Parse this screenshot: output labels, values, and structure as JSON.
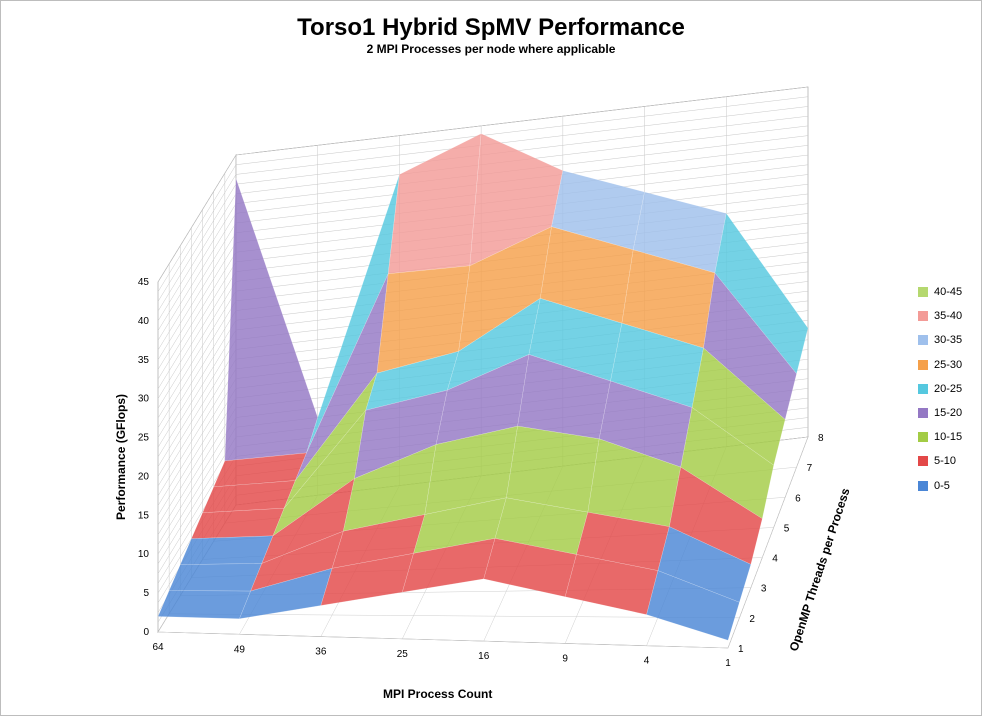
{
  "chart_data": {
    "type": "surface",
    "title": "Torso1 Hybrid SpMV Performance",
    "subtitle": "2 MPI Processes per node where applicable",
    "xlabel": "MPI Process Count",
    "ylabel": "OpenMP Threads per Process",
    "zlabel": "Performance (GFlops)",
    "x_categories": [
      "64",
      "49",
      "36",
      "25",
      "16",
      "9",
      "4",
      "1"
    ],
    "y_categories": [
      "1",
      "2",
      "3",
      "4",
      "5",
      "6",
      "7",
      "8"
    ],
    "zlim": [
      0,
      45
    ],
    "z_ticks": [
      "0",
      "5",
      "10",
      "15",
      "20",
      "25",
      "30",
      "35",
      "40",
      "45"
    ],
    "grid": true,
    "legend_position": "right",
    "legend": [
      {
        "label": "40-45",
        "color": "#b5d86f"
      },
      {
        "label": "35-40",
        "color": "#f39b97"
      },
      {
        "label": "30-35",
        "color": "#9fc0ec"
      },
      {
        "label": "25-30",
        "color": "#f5a04a"
      },
      {
        "label": "20-25",
        "color": "#55c8df"
      },
      {
        "label": "15-20",
        "color": "#9478c4"
      },
      {
        "label": "10-15",
        "color": "#a3cc45"
      },
      {
        "label": "5-10",
        "color": "#e34848"
      },
      {
        "label": "0-5",
        "color": "#4a86d6"
      }
    ],
    "values_note_rows": "rows indexed by OpenMP threads 1..8, columns by MPI process count 64,49,36,25,16,9,4,1",
    "z": [
      [
        2,
        2,
        4,
        6,
        8,
        6,
        4,
        1
      ],
      [
        3,
        3,
        6,
        8,
        10,
        8,
        6,
        2
      ],
      [
        4,
        4,
        8,
        10,
        12,
        10,
        8,
        3
      ],
      [
        5,
        5,
        12,
        16,
        18,
        16,
        12,
        5
      ],
      [
        6,
        6,
        18,
        20,
        24,
        20,
        16,
        8
      ],
      [
        7,
        7,
        20,
        22,
        28,
        24,
        20,
        10
      ],
      [
        8,
        8,
        30,
        30,
        34,
        30,
        26,
        12
      ],
      [
        42,
        10,
        40,
        44,
        38,
        34,
        30,
        14
      ]
    ]
  }
}
